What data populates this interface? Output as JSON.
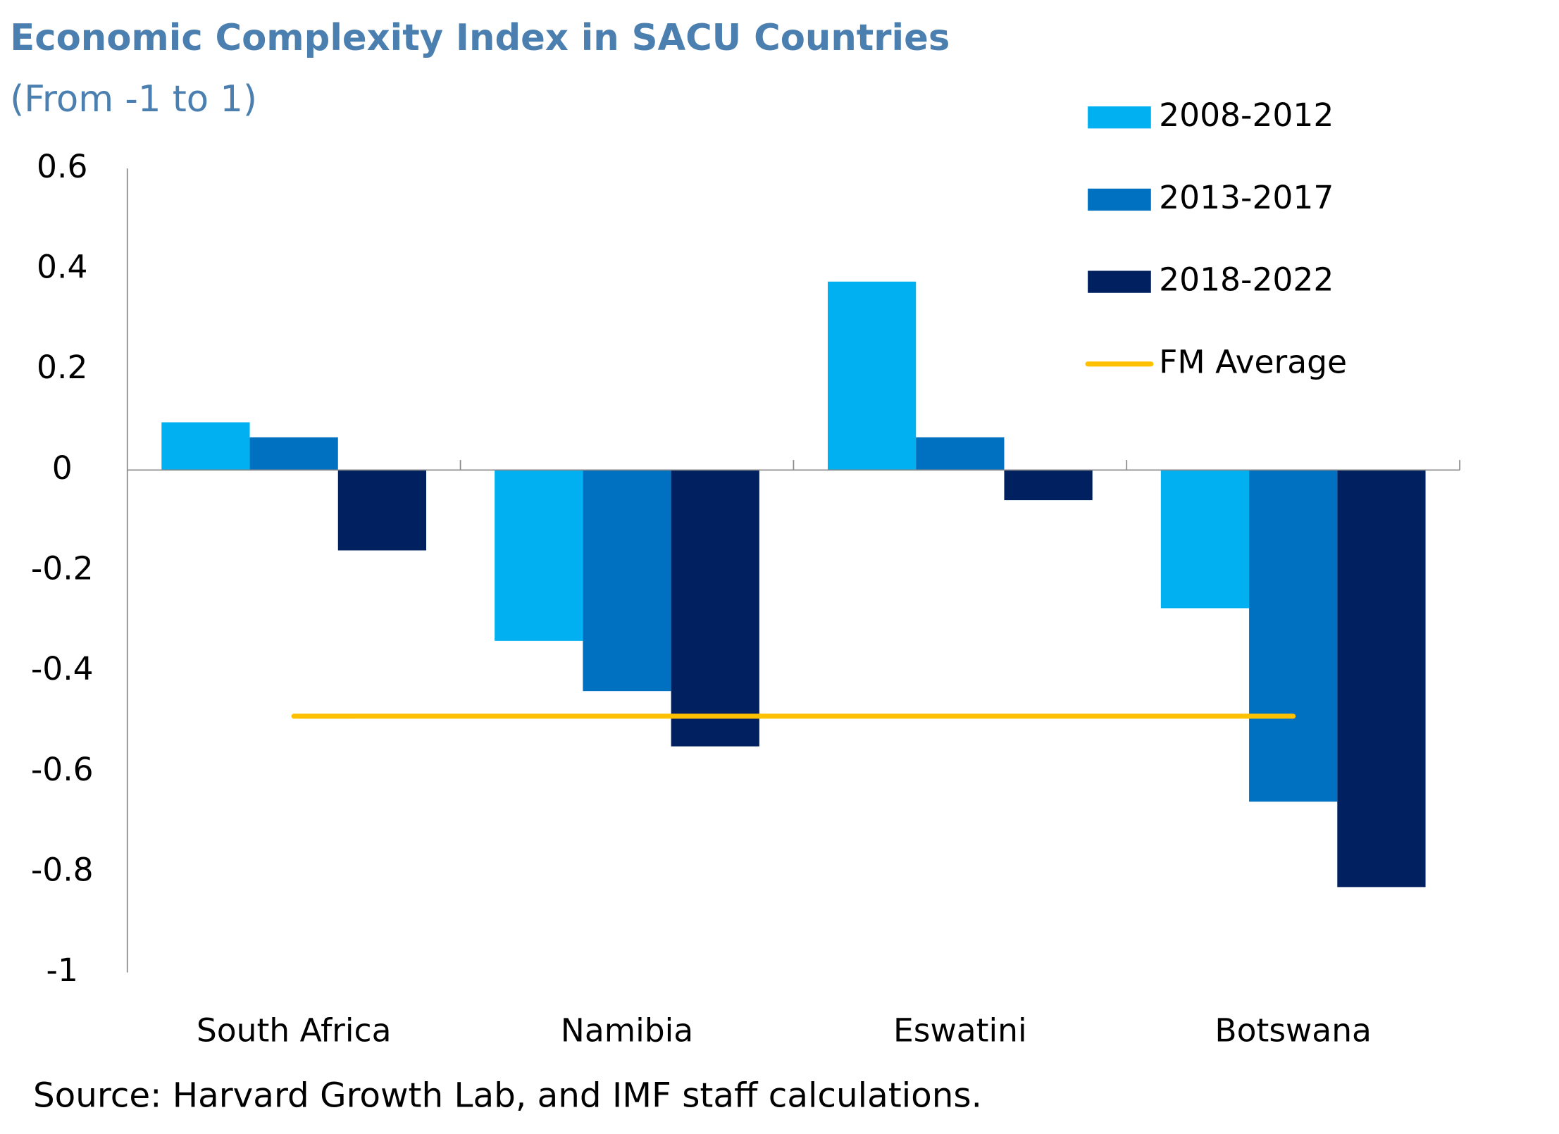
{
  "chart_data": {
    "type": "bar",
    "title": "Economic Complexity Index in SACU Countries",
    "subtitle": "(From -1 to 1)",
    "source": "Source: Harvard Growth Lab, and IMF staff calculations.",
    "categories": [
      "South Africa",
      "Namibia",
      "Eswatini",
      "Botswana"
    ],
    "series": [
      {
        "name": "2008-2012",
        "color": "#00b0f0",
        "values": [
          0.095,
          -0.34,
          0.375,
          -0.275
        ]
      },
      {
        "name": "2013-2017",
        "color": "#0070c0",
        "values": [
          0.065,
          -0.44,
          0.065,
          -0.66
        ]
      },
      {
        "name": "2018-2022",
        "color": "#002060",
        "values": [
          -0.16,
          -0.55,
          -0.06,
          -0.83
        ]
      },
      {
        "name": "FM Average",
        "color": "#ffc000",
        "type": "line",
        "values": [
          -0.49,
          -0.49,
          -0.49,
          -0.49
        ]
      }
    ],
    "ylim": [
      -1,
      0.6
    ],
    "yticks": [
      0.6,
      0.4,
      0.2,
      0,
      -0.2,
      -0.4,
      -0.6,
      -0.8,
      -1
    ],
    "grid": false,
    "legend": "top-right"
  }
}
